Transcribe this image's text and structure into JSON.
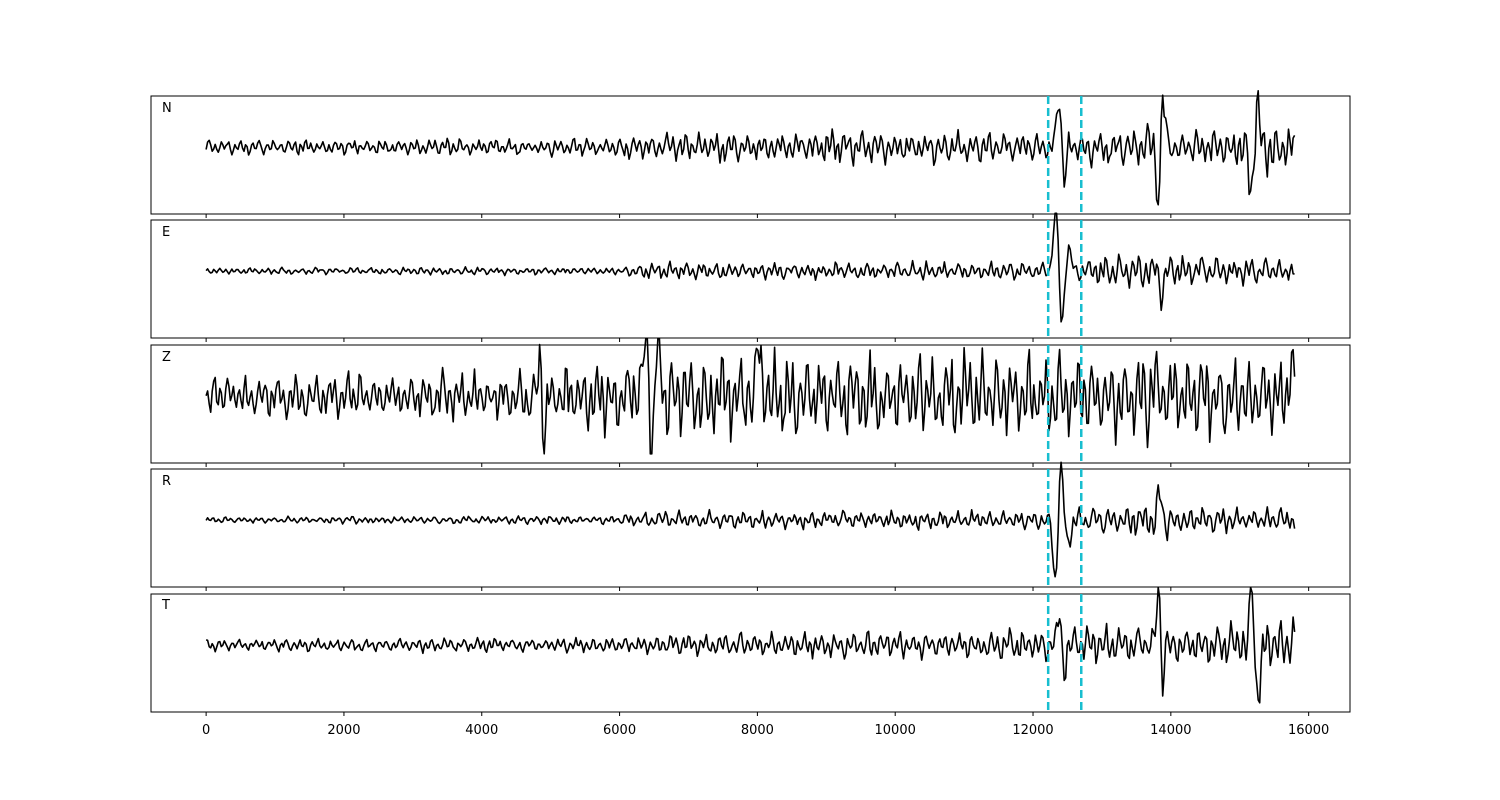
{
  "chart_data": {
    "type": "line",
    "title": "",
    "xlabel": "",
    "ylabel": "",
    "xlim": [
      -800,
      16600
    ],
    "x_ticks": [
      0,
      2000,
      4000,
      6000,
      8000,
      10000,
      12000,
      14000,
      16000
    ],
    "x_tick_labels": [
      "0",
      "2000",
      "4000",
      "6000",
      "8000",
      "10000",
      "12000",
      "14000",
      "16000"
    ],
    "x_end": 15800,
    "grid": false,
    "markers": {
      "color": "#17becf",
      "style": "dashed",
      "x": [
        12220,
        12700
      ]
    },
    "line_color": "#000000",
    "panels": [
      {
        "label": "N",
        "noise_profile": [
          [
            0,
            0.12
          ],
          [
            5800,
            0.14
          ],
          [
            6200,
            0.22
          ],
          [
            9000,
            0.26
          ],
          [
            11800,
            0.24
          ],
          [
            12200,
            0.25
          ],
          [
            13000,
            0.3
          ],
          [
            13700,
            0.35
          ],
          [
            14500,
            0.28
          ],
          [
            15000,
            0.5
          ],
          [
            15800,
            0.4
          ]
        ],
        "events": [
          {
            "x": 12380,
            "amp": 0.9,
            "width": 45
          },
          {
            "x": 12450,
            "amp": -0.55,
            "width": 45
          },
          {
            "x": 13820,
            "amp": -1.3,
            "width": 35
          },
          {
            "x": 13880,
            "amp": 0.9,
            "width": 40
          },
          {
            "x": 15170,
            "amp": -0.8,
            "width": 50
          },
          {
            "x": 15250,
            "amp": 0.75,
            "width": 50
          }
        ]
      },
      {
        "label": "E",
        "noise_profile": [
          [
            0,
            0.05
          ],
          [
            6000,
            0.07
          ],
          [
            6400,
            0.14
          ],
          [
            12000,
            0.15
          ],
          [
            12200,
            0.12
          ],
          [
            12900,
            0.25
          ],
          [
            13800,
            0.35
          ],
          [
            14300,
            0.25
          ],
          [
            15800,
            0.18
          ]
        ],
        "events": [
          {
            "x": 12330,
            "amp": 1.25,
            "width": 45
          },
          {
            "x": 12420,
            "amp": -0.95,
            "width": 45
          },
          {
            "x": 12520,
            "amp": 0.35,
            "width": 60
          },
          {
            "x": 13870,
            "amp": -0.45,
            "width": 40
          }
        ]
      },
      {
        "label": "Z",
        "noise_profile": [
          [
            0,
            0.35
          ],
          [
            4500,
            0.4
          ],
          [
            5000,
            0.5
          ],
          [
            6200,
            0.6
          ],
          [
            7000,
            0.7
          ],
          [
            15800,
            0.7
          ]
        ],
        "events": [
          {
            "x": 4850,
            "amp": 0.8,
            "width": 40
          },
          {
            "x": 4900,
            "amp": -0.9,
            "width": 40
          },
          {
            "x": 6380,
            "amp": 1.1,
            "width": 45
          },
          {
            "x": 6470,
            "amp": -0.9,
            "width": 45
          },
          {
            "x": 6550,
            "amp": 1.0,
            "width": 45
          },
          {
            "x": 8020,
            "amp": 1.0,
            "width": 40
          },
          {
            "x": 15780,
            "amp": 0.7,
            "width": 60
          }
        ]
      },
      {
        "label": "R",
        "noise_profile": [
          [
            0,
            0.05
          ],
          [
            6000,
            0.07
          ],
          [
            6400,
            0.14
          ],
          [
            12000,
            0.15
          ],
          [
            12200,
            0.13
          ],
          [
            12900,
            0.22
          ],
          [
            13800,
            0.3
          ],
          [
            14300,
            0.22
          ],
          [
            15800,
            0.18
          ]
        ],
        "events": [
          {
            "x": 12320,
            "amp": -1.1,
            "width": 45
          },
          {
            "x": 12410,
            "amp": 1.0,
            "width": 45
          },
          {
            "x": 12500,
            "amp": -0.4,
            "width": 60
          },
          {
            "x": 13840,
            "amp": 0.5,
            "width": 40
          }
        ]
      },
      {
        "label": "T",
        "noise_profile": [
          [
            0,
            0.1
          ],
          [
            6000,
            0.12
          ],
          [
            7000,
            0.2
          ],
          [
            11000,
            0.23
          ],
          [
            12200,
            0.25
          ],
          [
            13000,
            0.3
          ],
          [
            14500,
            0.3
          ],
          [
            15000,
            0.45
          ],
          [
            15800,
            0.45
          ]
        ],
        "events": [
          {
            "x": 12390,
            "amp": 0.6,
            "width": 40
          },
          {
            "x": 12450,
            "amp": -0.55,
            "width": 40
          },
          {
            "x": 13820,
            "amp": 1.2,
            "width": 35
          },
          {
            "x": 13880,
            "amp": -0.6,
            "width": 40
          },
          {
            "x": 15180,
            "amp": 0.8,
            "width": 50
          },
          {
            "x": 15260,
            "amp": -0.95,
            "width": 50
          }
        ]
      }
    ]
  }
}
